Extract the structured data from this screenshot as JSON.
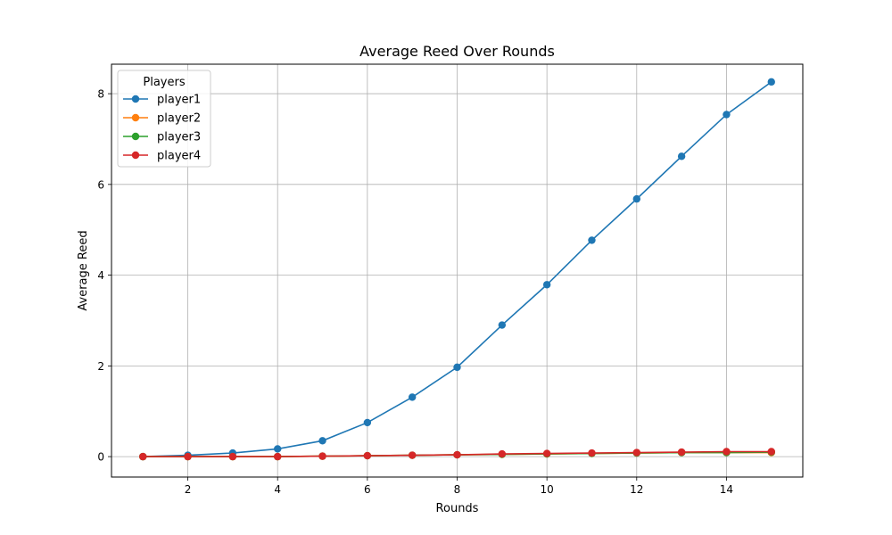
{
  "chart_data": {
    "type": "line",
    "title": "Average Reed Over Rounds",
    "xlabel": "Rounds",
    "ylabel": "Average Reed",
    "xlim": [
      0.3,
      15.7
    ],
    "ylim": [
      -0.45,
      8.65
    ],
    "xticks": [
      2,
      4,
      6,
      8,
      10,
      12,
      14
    ],
    "yticks": [
      0,
      2,
      4,
      6,
      8
    ],
    "grid": true,
    "legend": {
      "title": "Players",
      "placement": "top-left"
    },
    "x": [
      1,
      2,
      3,
      4,
      5,
      6,
      7,
      8,
      9,
      10,
      11,
      12,
      13,
      14,
      15
    ],
    "series": [
      {
        "name": "player1",
        "color": "#1f77b4",
        "values": [
          0.0,
          0.03,
          0.08,
          0.17,
          0.35,
          0.75,
          1.31,
          1.97,
          2.9,
          3.79,
          4.77,
          5.68,
          6.62,
          7.54,
          8.26
        ]
      },
      {
        "name": "player2",
        "color": "#ff7f0e",
        "values": [
          0.0,
          0.0,
          0.0,
          0.0,
          0.01,
          0.02,
          0.03,
          0.04,
          0.05,
          0.06,
          0.07,
          0.08,
          0.09,
          0.09,
          0.09
        ]
      },
      {
        "name": "player3",
        "color": "#2ca02c",
        "values": [
          0.0,
          0.0,
          0.0,
          0.0,
          0.01,
          0.02,
          0.03,
          0.04,
          0.05,
          0.06,
          0.07,
          0.08,
          0.09,
          0.09,
          0.1
        ]
      },
      {
        "name": "player4",
        "color": "#d62728",
        "values": [
          0.0,
          0.0,
          0.0,
          0.0,
          0.01,
          0.02,
          0.03,
          0.04,
          0.06,
          0.07,
          0.08,
          0.09,
          0.1,
          0.11,
          0.11
        ]
      }
    ]
  }
}
